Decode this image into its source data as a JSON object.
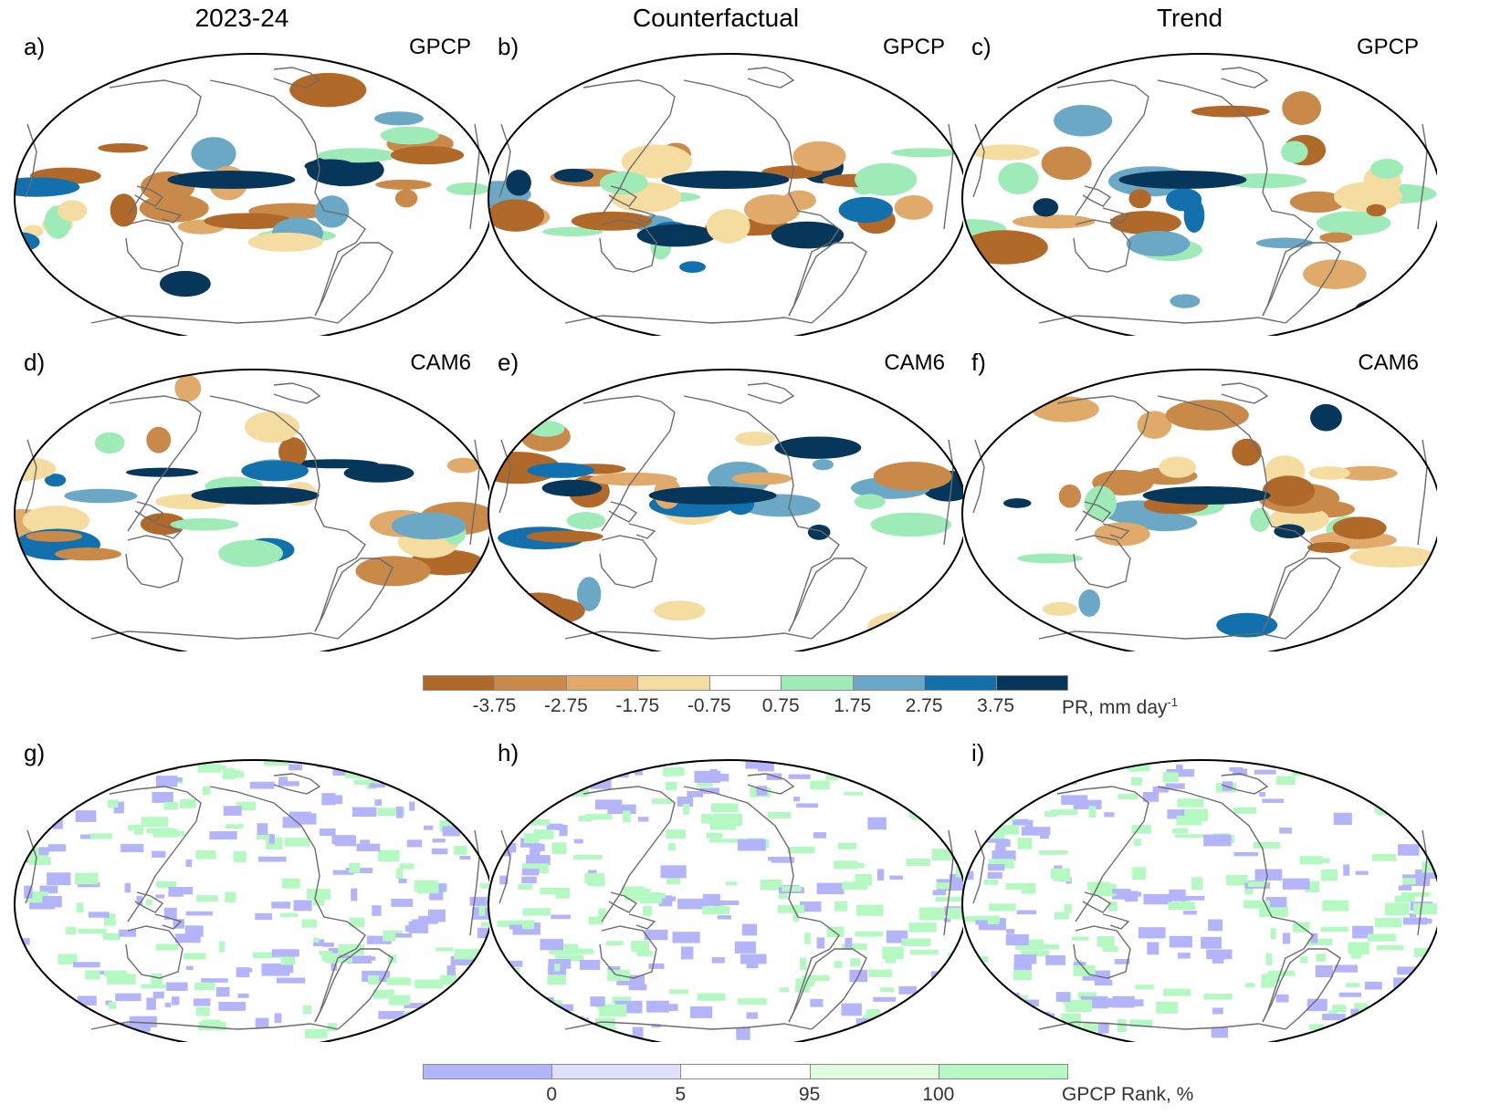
{
  "column_titles": [
    "2023-24",
    "Counterfactual",
    "Trend"
  ],
  "panels": [
    {
      "label": "a)",
      "dataset": "GPCP",
      "kind": "pr"
    },
    {
      "label": "b)",
      "dataset": "GPCP",
      "kind": "pr"
    },
    {
      "label": "c)",
      "dataset": "GPCP",
      "kind": "pr"
    },
    {
      "label": "d)",
      "dataset": "CAM6",
      "kind": "pr"
    },
    {
      "label": "e)",
      "dataset": "CAM6",
      "kind": "pr"
    },
    {
      "label": "f)",
      "dataset": "CAM6",
      "kind": "pr"
    },
    {
      "label": "g)",
      "dataset": "",
      "kind": "rank"
    },
    {
      "label": "h)",
      "dataset": "",
      "kind": "rank"
    },
    {
      "label": "i)",
      "dataset": "",
      "kind": "rank"
    }
  ],
  "pr_colorbar": {
    "colors": [
      "#b1692a",
      "#c98949",
      "#e0aa6a",
      "#f5dca0",
      "#ffffff",
      "#9eebb8",
      "#6ba8c6",
      "#1270ad",
      "#06375a"
    ],
    "ticks": [
      "-3.75",
      "-2.75",
      "-1.75",
      "-0.75",
      "0.75",
      "1.75",
      "2.75",
      "3.75"
    ],
    "units": "PR, mm day",
    "units_sup": "-1"
  },
  "rank_colorbar": {
    "colors": [
      "#b4b4fa",
      "#e0e0fc",
      "#ffffff",
      "#e0fce0",
      "#b4f8c2"
    ],
    "ticks": [
      "0",
      "5",
      "95",
      "100"
    ],
    "units": "GPCP Rank, %"
  }
}
